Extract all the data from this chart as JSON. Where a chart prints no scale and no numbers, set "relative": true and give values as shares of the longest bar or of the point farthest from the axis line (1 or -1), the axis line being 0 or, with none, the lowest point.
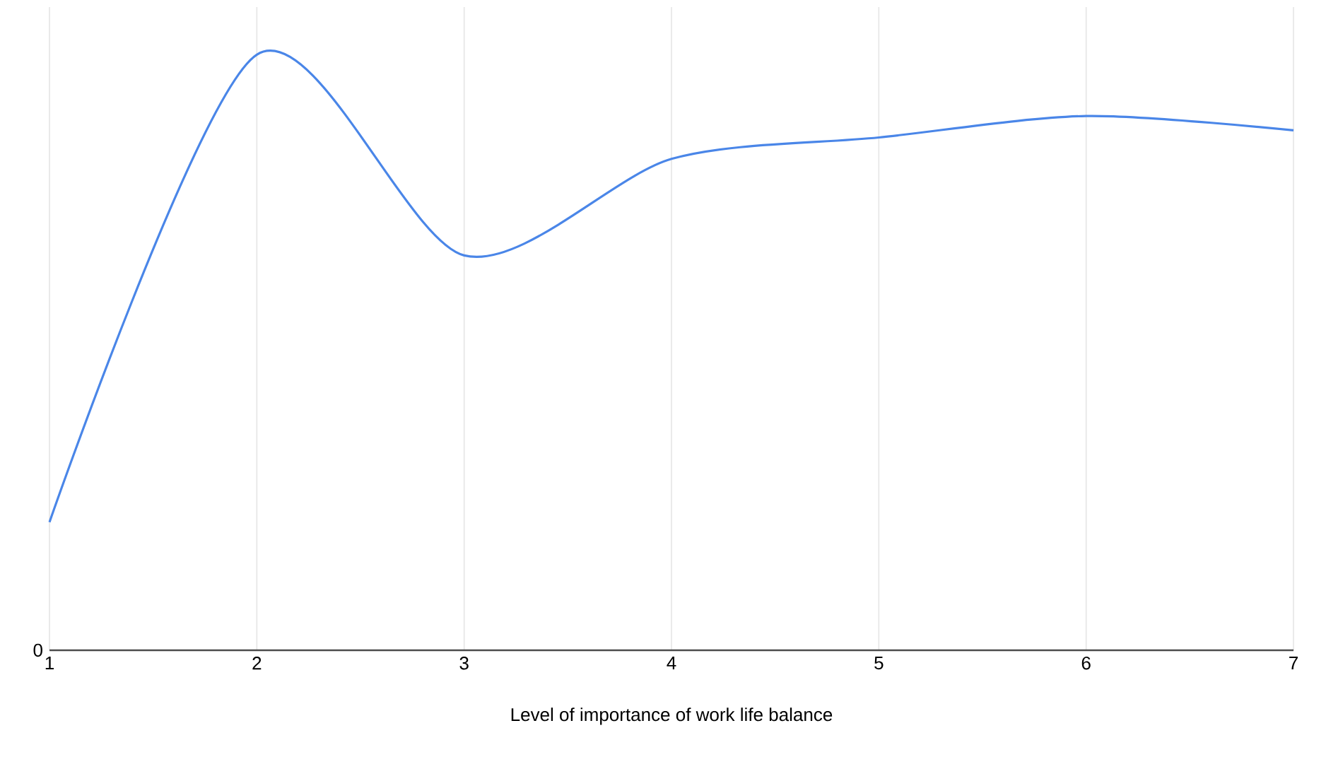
{
  "chart_data": {
    "type": "line",
    "relative": true,
    "xlabel": "Level of importance of work life balance",
    "categories": [
      "1",
      "2",
      "3",
      "4",
      "5",
      "6",
      "7"
    ],
    "series": [
      {
        "color": "#4a86e8",
        "values": [
          0.215,
          1,
          0.663,
          0.825,
          0.861,
          0.897,
          0.873
        ]
      }
    ],
    "annotations": [
      "0"
    ],
    "grid": "x",
    "marker": "none",
    "line_style": "solid"
  }
}
